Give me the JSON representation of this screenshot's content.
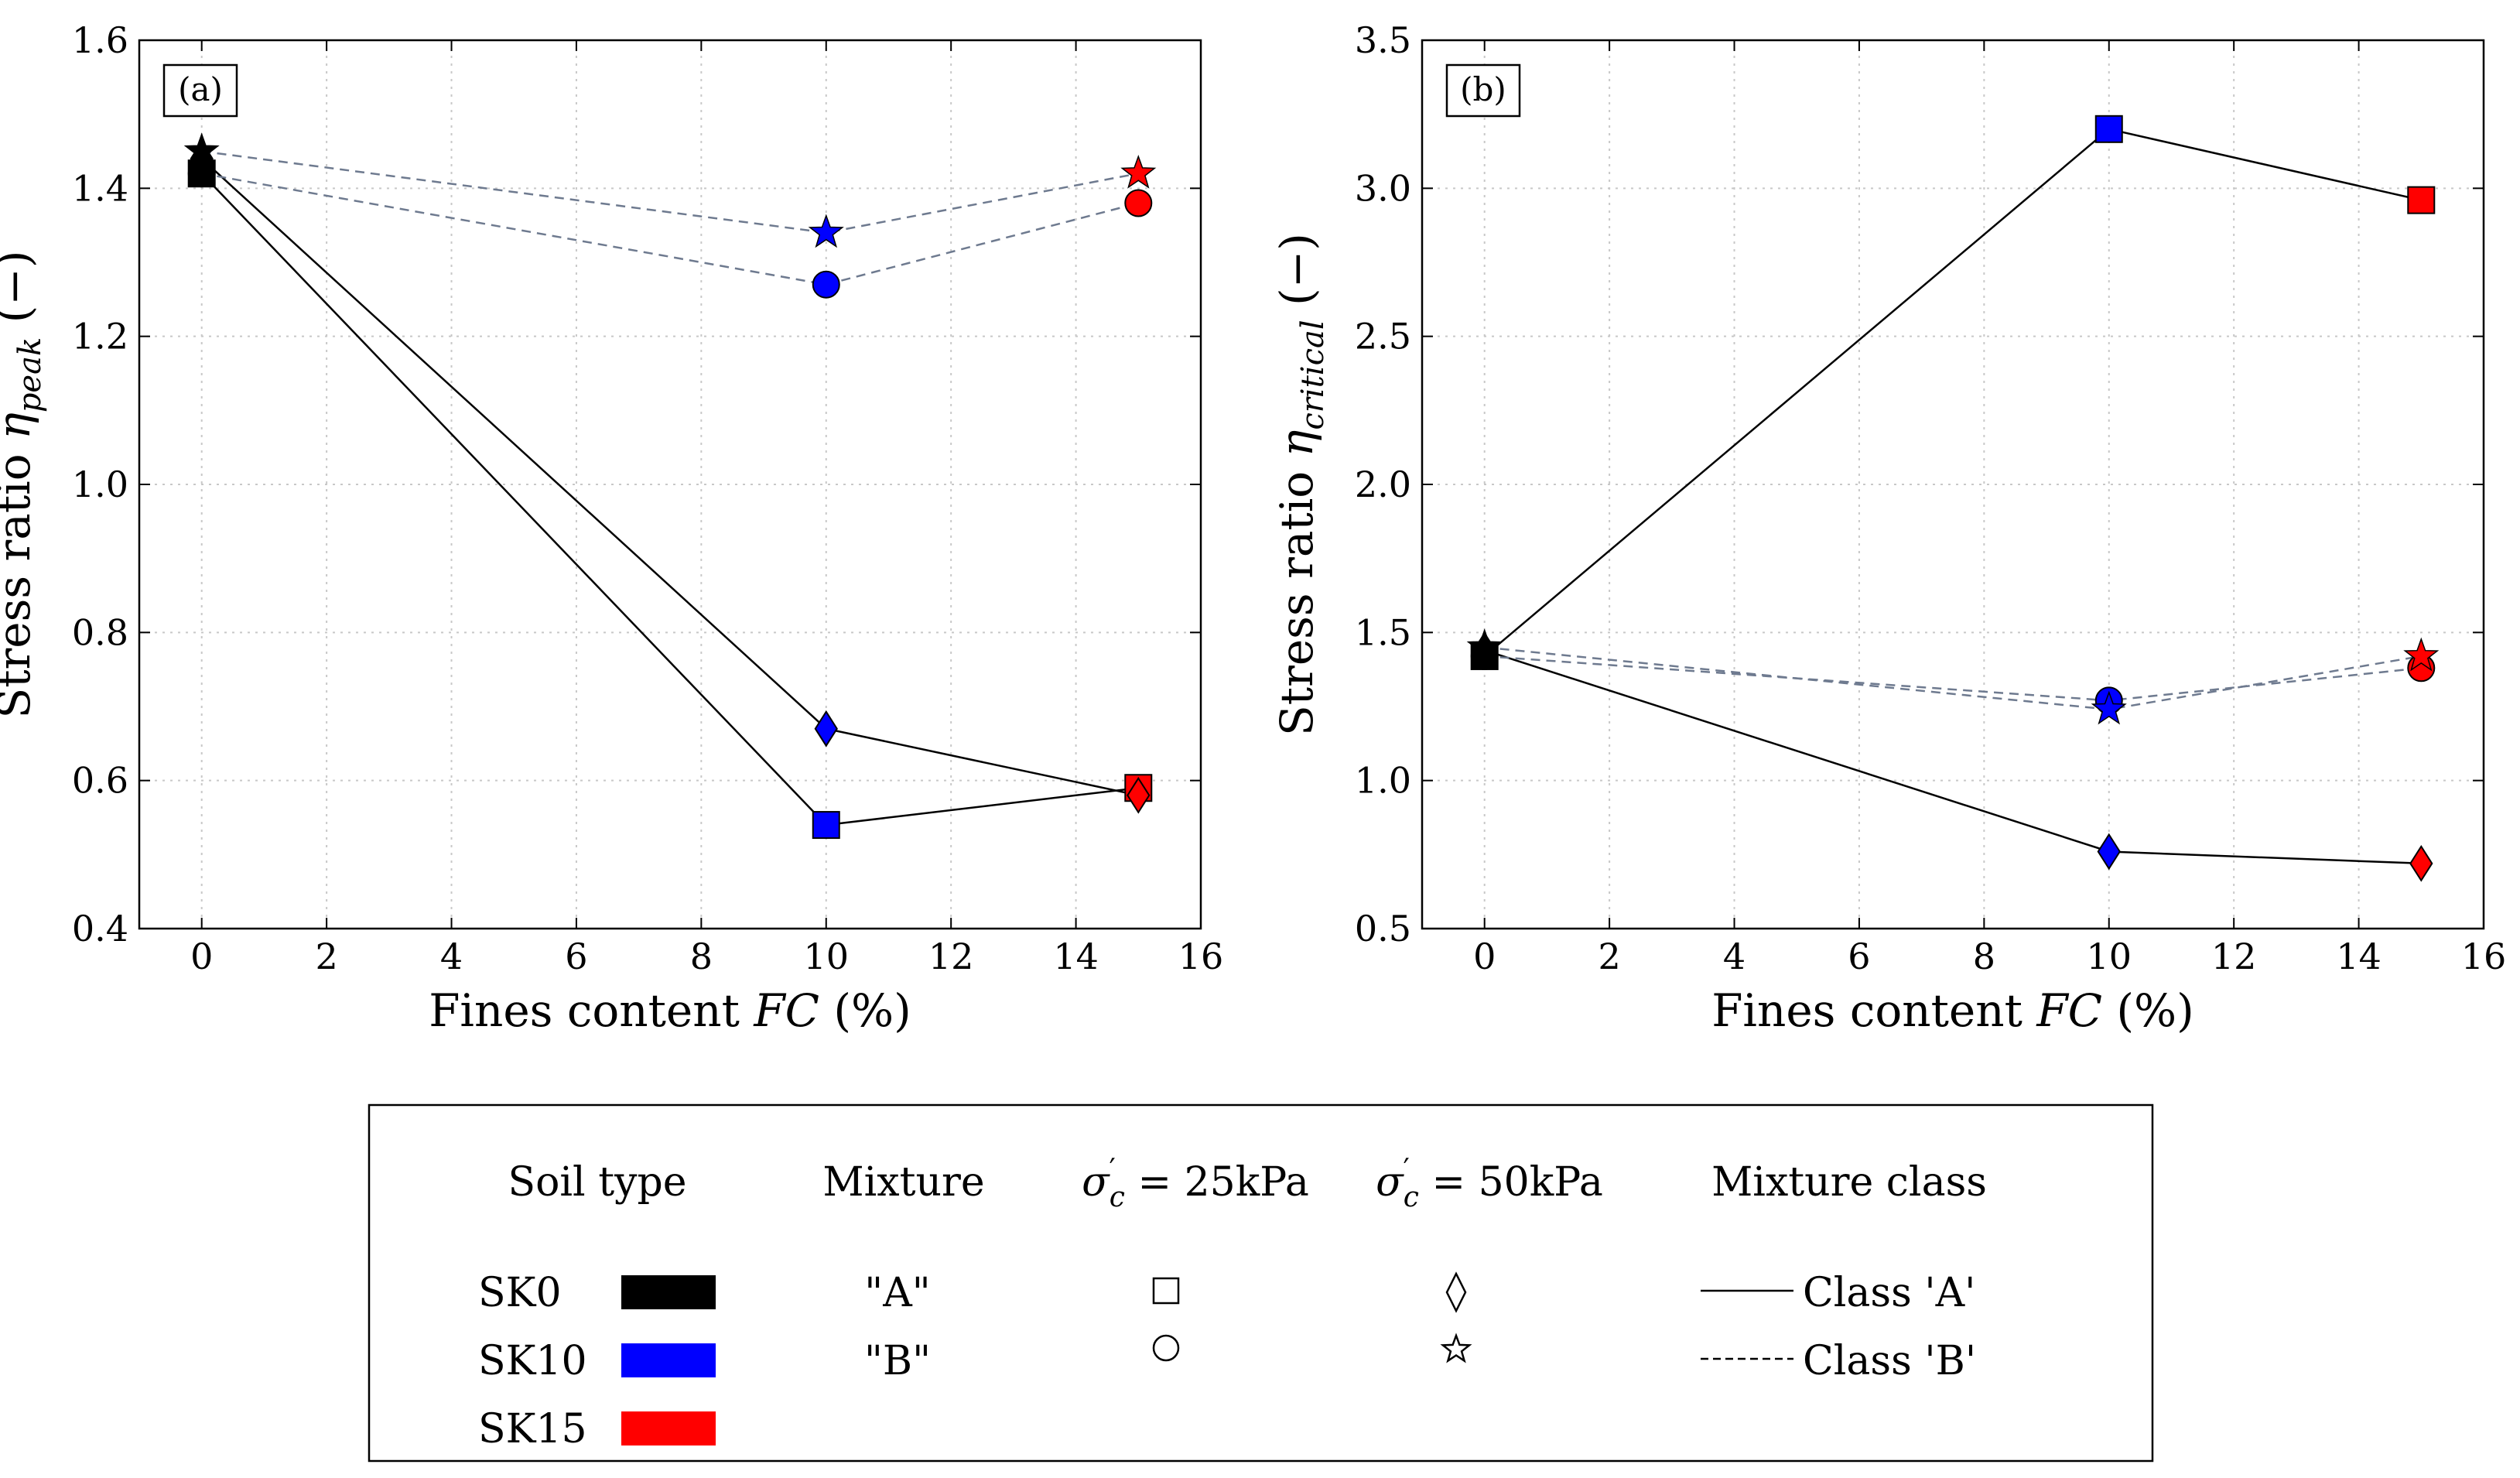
{
  "chart_data": [
    {
      "type": "line",
      "panel_label": "(a)",
      "xlabel": "Fines content FC (%)",
      "xlabel_parts": {
        "pre": "Fines content ",
        "italic": "FC",
        "post": " (%)"
      },
      "ylabel": "Stress ratio η_peak (−)",
      "ylabel_parts": {
        "pre": "Stress ratio ",
        "symbol": "η",
        "sub": "peak",
        "post": " (−)"
      },
      "xlim": [
        -1,
        16
      ],
      "ylim": [
        0.4,
        1.6
      ],
      "xticks": [
        0,
        2,
        4,
        6,
        8,
        10,
        12,
        14,
        16
      ],
      "yticks": [
        0.4,
        0.6,
        0.8,
        1.0,
        1.2,
        1.4,
        1.6
      ],
      "grid": true,
      "series": [
        {
          "mixture": "A",
          "stress": "25kPa",
          "marker": "square",
          "line": "solid",
          "x": [
            0,
            10,
            15
          ],
          "y": [
            1.42,
            0.54,
            0.59
          ],
          "soil": [
            "SK0",
            "SK10",
            "SK15"
          ]
        },
        {
          "mixture": "A",
          "stress": "50kPa",
          "marker": "diamond",
          "line": "solid",
          "x": [
            0,
            10,
            15
          ],
          "y": [
            1.44,
            0.67,
            0.58
          ],
          "soil": [
            "SK0",
            "SK10",
            "SK15"
          ]
        },
        {
          "mixture": "B",
          "stress": "25kPa",
          "marker": "circle",
          "line": "dashed",
          "x": [
            0,
            10,
            15
          ],
          "y": [
            1.42,
            1.27,
            1.38
          ],
          "soil": [
            "SK0",
            "SK10",
            "SK15"
          ]
        },
        {
          "mixture": "B",
          "stress": "50kPa",
          "marker": "star",
          "line": "dashed",
          "x": [
            0,
            10,
            15
          ],
          "y": [
            1.45,
            1.34,
            1.42
          ],
          "soil": [
            "SK0",
            "SK10",
            "SK15"
          ]
        }
      ]
    },
    {
      "type": "line",
      "panel_label": "(b)",
      "xlabel": "Fines content FC (%)",
      "xlabel_parts": {
        "pre": "Fines content ",
        "italic": "FC",
        "post": " (%)"
      },
      "ylabel": "Stress ratio η_critical (−)",
      "ylabel_parts": {
        "pre": "Stress ratio ",
        "symbol": "η",
        "sub": "critical",
        "post": " (−)"
      },
      "xlim": [
        -1,
        16
      ],
      "ylim": [
        0.5,
        3.5
      ],
      "xticks": [
        0,
        2,
        4,
        6,
        8,
        10,
        12,
        14,
        16
      ],
      "yticks": [
        0.5,
        1.0,
        1.5,
        2.0,
        2.5,
        3.0,
        3.5
      ],
      "grid": true,
      "series": [
        {
          "mixture": "A",
          "stress": "25kPa",
          "marker": "square",
          "line": "solid",
          "x": [
            0,
            10,
            15
          ],
          "y": [
            1.42,
            3.2,
            2.96
          ],
          "soil": [
            "SK0",
            "SK10",
            "SK15"
          ]
        },
        {
          "mixture": "A",
          "stress": "50kPa",
          "marker": "diamond",
          "line": "solid",
          "x": [
            0,
            10,
            15
          ],
          "y": [
            1.44,
            0.76,
            0.72
          ],
          "soil": [
            "SK0",
            "SK10",
            "SK15"
          ]
        },
        {
          "mixture": "B",
          "stress": "25kPa",
          "marker": "circle",
          "line": "dashed",
          "x": [
            0,
            10,
            15
          ],
          "y": [
            1.42,
            1.27,
            1.38
          ],
          "soil": [
            "SK0",
            "SK10",
            "SK15"
          ]
        },
        {
          "mixture": "B",
          "stress": "50kPa",
          "marker": "star",
          "line": "dashed",
          "x": [
            0,
            10,
            15
          ],
          "y": [
            1.45,
            1.24,
            1.42
          ],
          "soil": [
            "SK0",
            "SK10",
            "SK15"
          ]
        }
      ]
    }
  ],
  "legend": {
    "headers": {
      "soil_type": "Soil type",
      "mixture": "Mixture",
      "sigma25": "σ′c = 25kPa",
      "sigma50": "σ′c = 50kPa",
      "mixture_class": "Mixture class"
    },
    "soils": [
      {
        "label": "SK0",
        "color": "#000000"
      },
      {
        "label": "SK10",
        "color": "#0000ff"
      },
      {
        "label": "SK15",
        "color": "#ff0000"
      }
    ],
    "mixtures": [
      "\"A\"",
      "\"B\""
    ],
    "classes": [
      {
        "label": "Class 'A'",
        "line": "solid"
      },
      {
        "label": "Class 'B'",
        "line": "dashed"
      }
    ]
  },
  "colors": {
    "SK0": "#000000",
    "SK10": "#0000ff",
    "SK15": "#ff0000",
    "class_a_line": "#000000",
    "class_b_line": "#6e7a8f",
    "grid": "#c8c8c8"
  }
}
